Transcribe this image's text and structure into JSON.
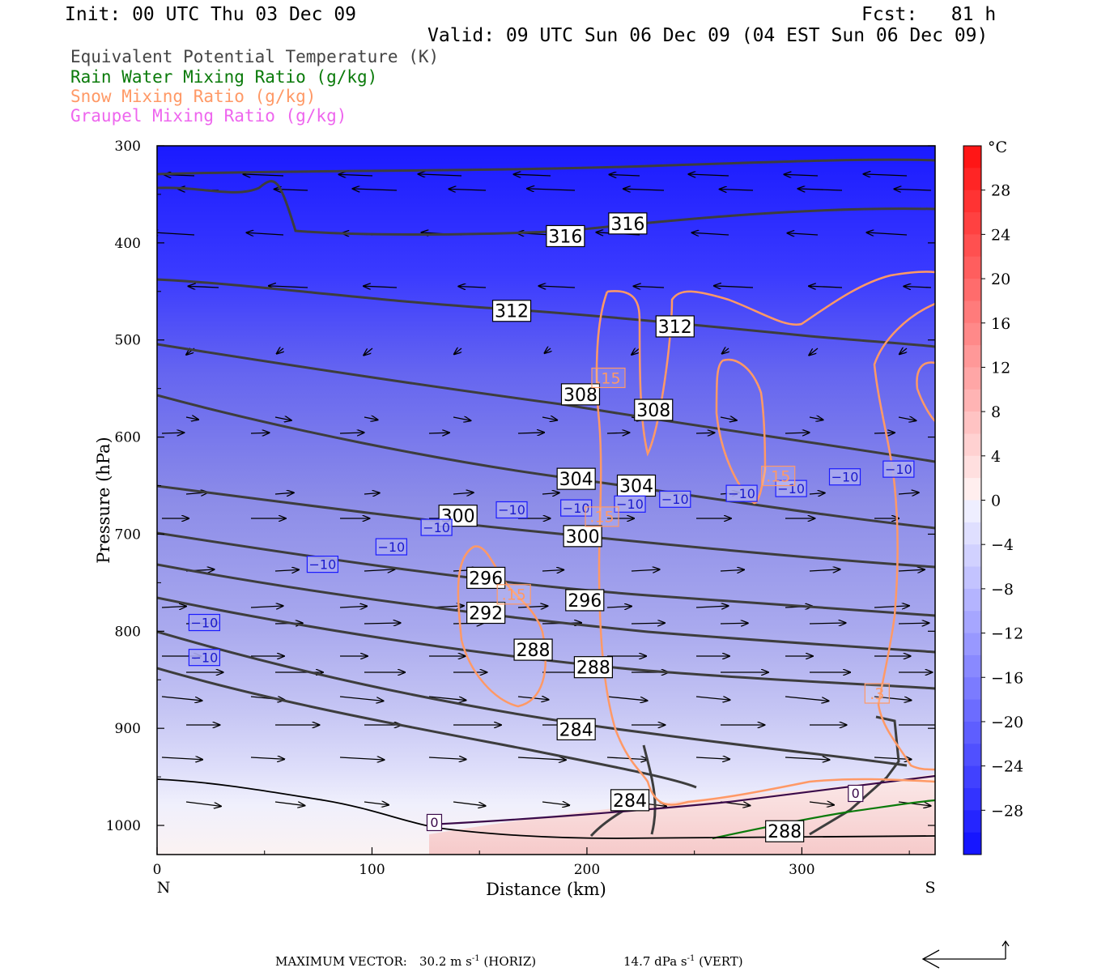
{
  "header": {
    "init": "Init: 00 UTC Thu 03 Dec 09",
    "fcst": "Fcst:   81 h",
    "valid": "Valid: 09 UTC Sun 06 Dec 09 (04 EST Sun 06 Dec 09)"
  },
  "legend": [
    {
      "label": "Equivalent Potential Temperature (K)",
      "color": "#444444"
    },
    {
      "label": "Rain Water Mixing Ratio (g/kg)",
      "color": "#0a7a0a"
    },
    {
      "label": "Snow Mixing Ratio (g/kg)",
      "color": "#ff9966"
    },
    {
      "label": "Graupel Mixing Ratio (g/kg)",
      "color": "#ee66ee"
    }
  ],
  "chart_data": {
    "type": "cross-section",
    "xlabel": "Distance (km)",
    "ylabel": "Pressure (hPa)",
    "x_left_label": "N",
    "x_right_label": "S",
    "xlim": [
      0,
      362
    ],
    "ylim": [
      1030,
      300
    ],
    "x_ticks": [
      0,
      100,
      200,
      300
    ],
    "y_ticks": [
      300,
      400,
      500,
      600,
      700,
      800,
      900,
      1000
    ],
    "colorbar": {
      "unit": "°C",
      "ticks": [
        28,
        24,
        20,
        16,
        12,
        8,
        4,
        0,
        -4,
        -8,
        -12,
        -16,
        -20,
        -24,
        -28
      ],
      "tick_labels": [
        "28",
        "24",
        "20",
        "16",
        "12",
        "8",
        "4",
        "0",
        "−4",
        "−8",
        "−12",
        "−16",
        "−20",
        "−24",
        "−28"
      ],
      "range": [
        -32,
        32
      ]
    },
    "theta_e_labels": [
      {
        "text": "316",
        "x": 190,
        "p": 393
      },
      {
        "text": "316",
        "x": 219,
        "p": 380
      },
      {
        "text": "312",
        "x": 165,
        "p": 470
      },
      {
        "text": "312",
        "x": 241,
        "p": 486
      },
      {
        "text": "308",
        "x": 197,
        "p": 556
      },
      {
        "text": "308",
        "x": 231,
        "p": 572
      },
      {
        "text": "304",
        "x": 195,
        "p": 643
      },
      {
        "text": "304",
        "x": 223,
        "p": 650
      },
      {
        "text": "300",
        "x": 140,
        "p": 681
      },
      {
        "text": "300",
        "x": 198,
        "p": 702
      },
      {
        "text": "296",
        "x": 153,
        "p": 745
      },
      {
        "text": "296",
        "x": 199,
        "p": 768
      },
      {
        "text": "292",
        "x": 153,
        "p": 781
      },
      {
        "text": "288",
        "x": 175,
        "p": 819
      },
      {
        "text": "288",
        "x": 203,
        "p": 837
      },
      {
        "text": "284",
        "x": 195,
        "p": 901
      },
      {
        "text": "284",
        "x": 220,
        "p": 974
      },
      {
        "text": "288",
        "x": 292,
        "p": 1006
      }
    ],
    "temp_labels": [
      {
        "text": "−10",
        "x": 22,
        "p": 791
      },
      {
        "text": "−10",
        "x": 22,
        "p": 827
      },
      {
        "text": "−10",
        "x": 77,
        "p": 731
      },
      {
        "text": "−10",
        "x": 109,
        "p": 713
      },
      {
        "text": "−10",
        "x": 130,
        "p": 693
      },
      {
        "text": "−10",
        "x": 165,
        "p": 675
      },
      {
        "text": "−10",
        "x": 195,
        "p": 673
      },
      {
        "text": "−10",
        "x": 220,
        "p": 669
      },
      {
        "text": "−10",
        "x": 241,
        "p": 664
      },
      {
        "text": "−10",
        "x": 272,
        "p": 658
      },
      {
        "text": "−10",
        "x": 295,
        "p": 653
      },
      {
        "text": "−10",
        "x": 320,
        "p": 641
      },
      {
        "text": "−10",
        "x": 345,
        "p": 633
      },
      {
        "text": "0",
        "x": 129,
        "p": 997
      },
      {
        "text": "0",
        "x": 325,
        "p": 967
      }
    ],
    "snow_labels": [
      {
        "text": ".15",
        "x": 210,
        "p": 539
      },
      {
        "text": ".15",
        "x": 207,
        "p": 682
      },
      {
        "text": ".15",
        "x": 166,
        "p": 762
      },
      {
        "text": ".15",
        "x": 289,
        "p": 640
      },
      {
        "text": ".3",
        "x": 335,
        "p": 864
      }
    ]
  },
  "footer": {
    "max_vector": "MAXIMUM VECTOR:",
    "horiz_value": "30.2 m s",
    "horiz_unit": "(HORIZ)",
    "vert_value": "14.7 dPa s",
    "vert_unit": "(VERT)",
    "exponent": "-1"
  }
}
